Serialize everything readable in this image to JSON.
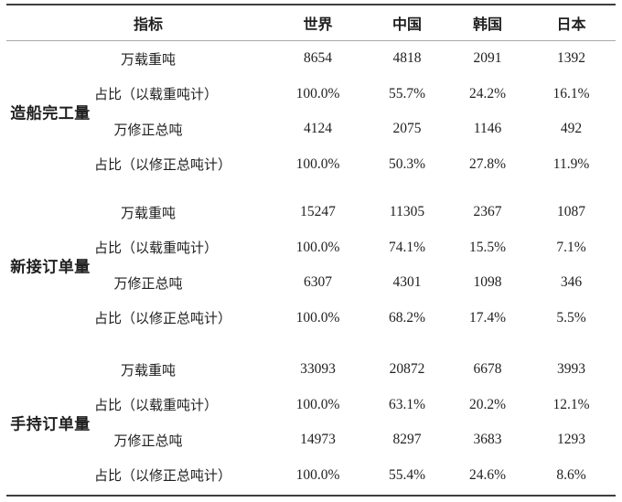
{
  "colors": {
    "background": "#ffffff",
    "text": "#1f1f1f",
    "rule_thick": "#3e3e3e",
    "rule_thin": "#a9a9a9"
  },
  "chart_data": {
    "type": "table",
    "title": "",
    "layout": {
      "style": "three-line-table",
      "columns_total": 6,
      "grouped_rows": true
    },
    "header": {
      "indicator": "指标",
      "regions": [
        "世界",
        "中国",
        "韩国",
        "日本"
      ]
    },
    "row_groups": [
      {
        "group_label": "造船完工量",
        "rows": [
          {
            "label": "万载重吨",
            "values": [
              "8654",
              "4818",
              "2091",
              "1392"
            ]
          },
          {
            "label": "占比（以载重吨计）",
            "values": [
              "100.0%",
              "55.7%",
              "24.2%",
              "16.1%"
            ]
          },
          {
            "label": "万修正总吨",
            "values": [
              "4124",
              "2075",
              "1146",
              "492"
            ]
          },
          {
            "label": "占比（以修正总吨计）",
            "values": [
              "100.0%",
              "50.3%",
              "27.8%",
              "11.9%"
            ]
          }
        ]
      },
      {
        "group_label": "新接订单量",
        "rows": [
          {
            "label": "万载重吨",
            "values": [
              "15247",
              "11305",
              "2367",
              "1087"
            ]
          },
          {
            "label": "占比（以载重吨计）",
            "values": [
              "100.0%",
              "74.1%",
              "15.5%",
              "7.1%"
            ]
          },
          {
            "label": "万修正总吨",
            "values": [
              "6307",
              "4301",
              "1098",
              "346"
            ]
          },
          {
            "label": "占比（以修正总吨计）",
            "values": [
              "100.0%",
              "68.2%",
              "17.4%",
              "5.5%"
            ]
          }
        ]
      },
      {
        "group_label": "手持订单量",
        "rows": [
          {
            "label": "万载重吨",
            "values": [
              "33093",
              "20872",
              "6678",
              "3993"
            ]
          },
          {
            "label": "占比（以载重吨计）",
            "values": [
              "100.0%",
              "63.1%",
              "20.2%",
              "12.1%"
            ]
          },
          {
            "label": "万修正总吨",
            "values": [
              "14973",
              "8297",
              "3683",
              "1293"
            ]
          },
          {
            "label": "占比（以修正总吨计）",
            "values": [
              "100.0%",
              "55.4%",
              "24.6%",
              "8.6%"
            ]
          }
        ]
      }
    ]
  }
}
